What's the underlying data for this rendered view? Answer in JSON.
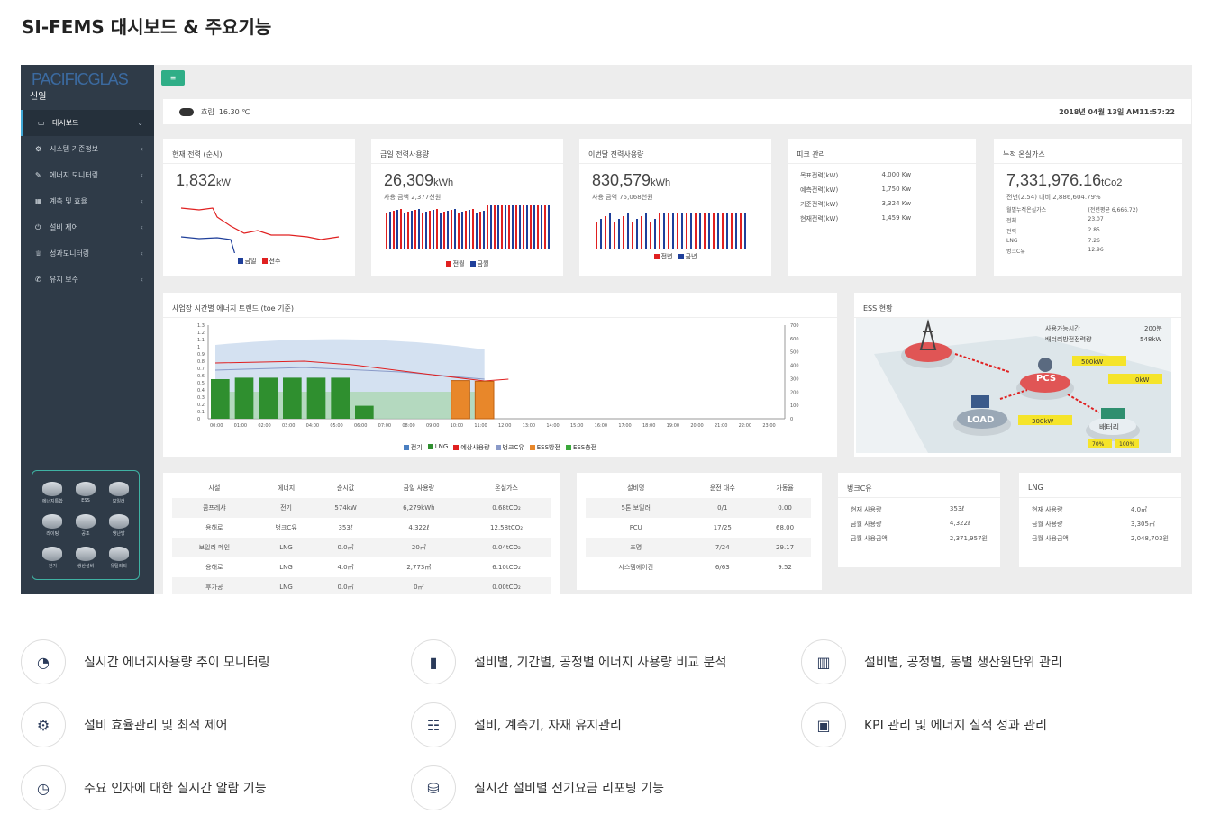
{
  "page_title": "SI-FEMS 대시보드 & 주요기능",
  "sidebar": {
    "logo": "PACIFICGLAS",
    "logo_sub": "신일",
    "items": [
      {
        "icon": "monitor-icon",
        "label": "대시보드",
        "active": true
      },
      {
        "icon": "gears-icon",
        "label": "시스템 기준정보"
      },
      {
        "icon": "leaf-icon",
        "label": "에너지 모니터링"
      },
      {
        "icon": "grid-icon",
        "label": "계측 및 효율"
      },
      {
        "icon": "power-icon",
        "label": "설비 제어"
      },
      {
        "icon": "trophy-icon",
        "label": "성과모니터링"
      },
      {
        "icon": "wrench-icon",
        "label": "유지 보수"
      }
    ],
    "ess_items": [
      "에너지통합",
      "ESS",
      "보일러",
      "라이팅",
      "공조",
      "냉난방",
      "전기",
      "생산설비",
      "유틸리티"
    ]
  },
  "weather": {
    "desc": "흐림",
    "temp": "16.30 ℃",
    "datetime": "2018년 04월 13일 AM11:57:22"
  },
  "cards": {
    "current_power": {
      "title": "현재 전력 (순시)",
      "value": "1,832",
      "unit": "kW",
      "legend": [
        "금일",
        "전주"
      ]
    },
    "today_usage": {
      "title": "금일 전력사용량",
      "value": "26,309",
      "unit": "kWh",
      "sub": "사용 금액 2,377천원",
      "legend": [
        "전월",
        "금월"
      ]
    },
    "month_usage": {
      "title": "이번달 전력사용량",
      "value": "830,579",
      "unit": "kWh",
      "sub": "사용 금액 75,068천원",
      "legend": [
        "전년",
        "금년"
      ]
    },
    "peak": {
      "title": "피크 관리",
      "rows": [
        [
          "목표전력(kW)",
          "4,000 Kw"
        ],
        [
          "예측전력(kW)",
          "1,750 Kw"
        ],
        [
          "기준전력(kW)",
          "3,324 Kw"
        ],
        [
          "현재전력(kW)",
          "1,459 Kw"
        ]
      ]
    },
    "ghg": {
      "title": "누적 온실가스",
      "value": "7,331,976.16",
      "unit": "tCo2",
      "sub": "전년(2.54) 대비 2,886,604.79%",
      "rows": [
        [
          "월별누적온실가스",
          "(전년평균 6,666.72)"
        ],
        [
          "전체",
          "23.07"
        ],
        [
          "전력",
          "2.85"
        ],
        [
          "LNG",
          "7.26"
        ],
        [
          "벙크C유",
          "12.96"
        ]
      ]
    }
  },
  "trend": {
    "title": "사업장 시간별 에너지 트랜드 (toe 기준)",
    "legend": [
      "전기",
      "LNG",
      "예상사용량",
      "벙크C유",
      "ESS방전",
      "ESS충전"
    ],
    "hours": [
      "00:00",
      "01:00",
      "02:00",
      "03:00",
      "04:00",
      "05:00",
      "06:00",
      "07:00",
      "08:00",
      "09:00",
      "10:00",
      "11:00",
      "12:00",
      "13:00",
      "14:00",
      "15:00",
      "16:00",
      "17:00",
      "18:00",
      "19:00",
      "20:00",
      "21:00",
      "22:00",
      "23:00"
    ],
    "y_left": [
      "1.3",
      "1.2",
      "1.1",
      "1",
      "0.9",
      "0.8",
      "0.7",
      "0.6",
      "0.5",
      "0.4",
      "0.3",
      "0.2",
      "0.1",
      "0"
    ],
    "y_right": [
      "700",
      "600",
      "500",
      "400",
      "300",
      "200",
      "100",
      "0"
    ],
    "green_bars": [
      0.55,
      0.57,
      0.57,
      0.57,
      0.57,
      0.57,
      0.18
    ],
    "orange_bars": [
      0.53,
      0.52
    ]
  },
  "ess": {
    "title": "ESS 현황",
    "info": [
      [
        "사용가능시간",
        "200분"
      ],
      [
        "배터리방전전력량",
        "548kW"
      ]
    ],
    "pcs": "PCS",
    "load": "LOAD",
    "battery": "배터리",
    "flow1": "500kW",
    "flow2": "0kW",
    "flow3": "300kW",
    "soc": [
      "70%",
      "100%"
    ]
  },
  "facility_table": {
    "headers": [
      "시설",
      "에너지",
      "순시값",
      "금일 사용량",
      "온실가스"
    ],
    "rows": [
      [
        "콤프레샤",
        "전기",
        "574kW",
        "6,279kWh",
        "0.68tCO₂"
      ],
      [
        "용해로",
        "벙크C유",
        "353ℓ",
        "4,322ℓ",
        "12.58tCO₂"
      ],
      [
        "보일러 메인",
        "LNG",
        "0.0㎥",
        "20㎥",
        "0.04tCO₂"
      ],
      [
        "용해로",
        "LNG",
        "4.0㎥",
        "2,773㎥",
        "6.10tCO₂"
      ],
      [
        "후가공",
        "LNG",
        "0.0㎥",
        "0㎥",
        "0.00tCO₂"
      ]
    ]
  },
  "equip_table": {
    "headers": [
      "설비명",
      "운전 대수",
      "가동율"
    ],
    "rows": [
      [
        "5톤 보일러",
        "0/1",
        "0.00"
      ],
      [
        "FCU",
        "17/25",
        "68.00"
      ],
      [
        "조명",
        "7/24",
        "29.17"
      ],
      [
        "시스템에어컨",
        "6/63",
        "9.52"
      ]
    ]
  },
  "bunker": {
    "title": "벙크C유",
    "rows": [
      [
        "현재 사용량",
        "353ℓ"
      ],
      [
        "금월 사용량",
        "4,322ℓ"
      ],
      [
        "금월 사용금액",
        "2,371,957원"
      ]
    ]
  },
  "lng": {
    "title": "LNG",
    "rows": [
      [
        "현재 사용량",
        "4.0㎥"
      ],
      [
        "금월 사용량",
        "3,305㎥"
      ],
      [
        "금월 사용금액",
        "2,048,703원"
      ]
    ]
  },
  "features": [
    {
      "icon": "pie-chart-icon",
      "label": "실시간 에너지사용량 추이 모니터링"
    },
    {
      "icon": "bar-chart-icon",
      "label": "설비별, 기간별, 공정별 에너지 사용량 비교 분석"
    },
    {
      "icon": "factory-chart-icon",
      "label": "설비별, 공정별, 동별 생산원단위 관리"
    },
    {
      "icon": "gear-icon",
      "label": "설비 효율관리 및 최적 제어"
    },
    {
      "icon": "clipboard-icon",
      "label": "설비, 계측기, 자재 유지관리"
    },
    {
      "icon": "presentation-icon",
      "label": "KPI 관리 및 에너지 실적 성과 관리"
    },
    {
      "icon": "stopwatch-icon",
      "label": "주요 인자에 대한 실시간 알람 기능"
    },
    {
      "icon": "coins-icon",
      "label": "실시간 설비별 전기요금 리포팅 기능"
    }
  ],
  "colors": {
    "sidebar": "#2f3b48",
    "accent": "#2fae87",
    "red": "#e02020",
    "blue": "#1f3f9a",
    "green": "#2f8f2f",
    "orange": "#e8872a"
  }
}
